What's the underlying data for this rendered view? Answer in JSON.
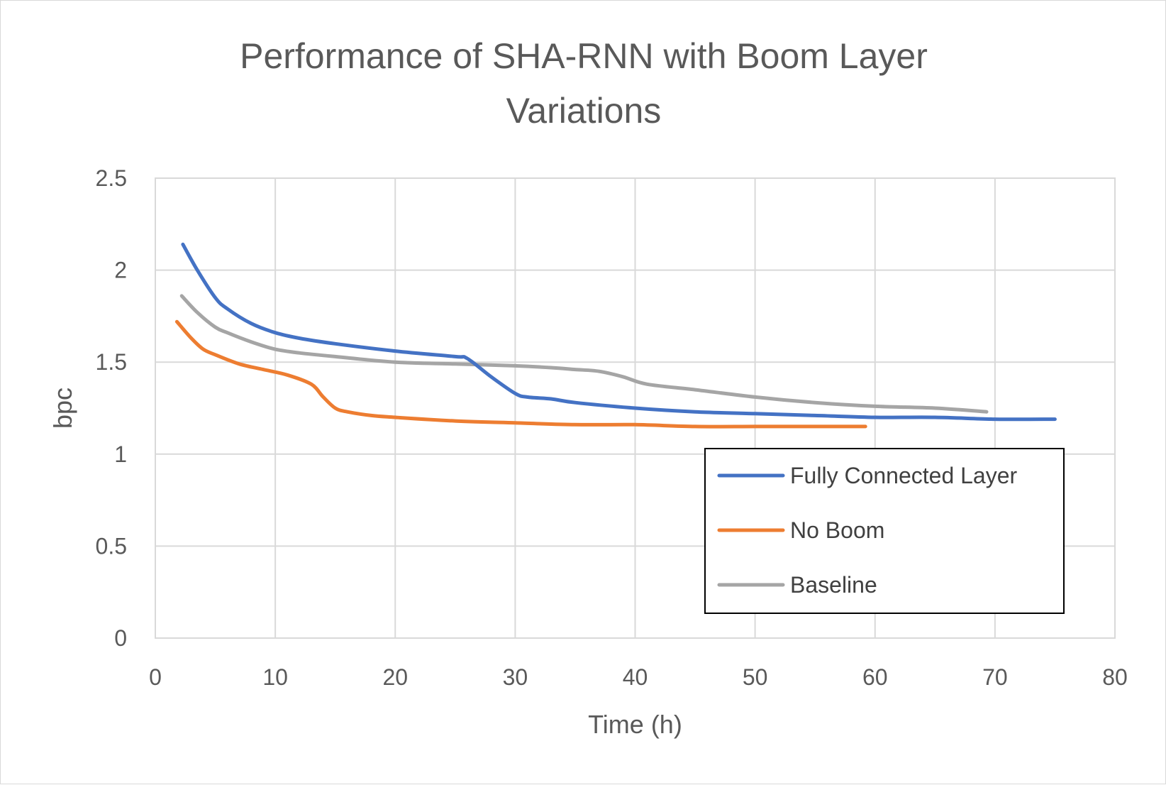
{
  "chart_data": {
    "type": "line",
    "title_lines": [
      "Performance of SHA-RNN with Boom Layer",
      "Variations"
    ],
    "xlabel": "Time (h)",
    "ylabel": "bpc",
    "xlim": [
      0,
      80
    ],
    "ylim": [
      0,
      2.5
    ],
    "x_ticks": [
      0,
      10,
      20,
      30,
      40,
      50,
      60,
      70,
      80
    ],
    "y_ticks": [
      0,
      0.5,
      1,
      1.5,
      2,
      2.5
    ],
    "x_tick_labels": [
      "0",
      "10",
      "20",
      "30",
      "40",
      "50",
      "60",
      "70",
      "80"
    ],
    "y_tick_labels": [
      "0",
      "0.5",
      "1",
      "1.5",
      "2",
      "2.5"
    ],
    "grid": true,
    "legend_position": "bottom-right",
    "series": [
      {
        "name": "Fully Connected Layer",
        "color": "#4472c4",
        "x": [
          2.3,
          3.5,
          5,
          6,
          8,
          10,
          12,
          15,
          20,
          25,
          26,
          28,
          30,
          31,
          33,
          35,
          40,
          45,
          50,
          55,
          60,
          65,
          70,
          75
        ],
        "y": [
          2.14,
          2.0,
          1.85,
          1.79,
          1.71,
          1.66,
          1.63,
          1.6,
          1.56,
          1.53,
          1.52,
          1.42,
          1.33,
          1.31,
          1.3,
          1.28,
          1.25,
          1.23,
          1.22,
          1.21,
          1.2,
          1.2,
          1.19,
          1.19
        ]
      },
      {
        "name": "No Boom",
        "color": "#ed7d31",
        "x": [
          1.8,
          3,
          4,
          5,
          7,
          9,
          11,
          13,
          14,
          15,
          16,
          18,
          20,
          25,
          30,
          35,
          40,
          45,
          50,
          55,
          59.2
        ],
        "y": [
          1.72,
          1.63,
          1.57,
          1.54,
          1.49,
          1.46,
          1.43,
          1.38,
          1.31,
          1.25,
          1.23,
          1.21,
          1.2,
          1.18,
          1.17,
          1.16,
          1.16,
          1.15,
          1.15,
          1.15,
          1.15
        ]
      },
      {
        "name": "Baseline",
        "color": "#a5a5a5",
        "x": [
          2.2,
          3.5,
          5,
          6,
          8,
          10,
          12,
          15,
          20,
          25,
          30,
          33,
          35,
          37,
          39,
          41,
          45,
          50,
          55,
          60,
          65,
          69.3
        ],
        "y": [
          1.86,
          1.77,
          1.69,
          1.66,
          1.61,
          1.57,
          1.55,
          1.53,
          1.5,
          1.49,
          1.48,
          1.47,
          1.46,
          1.45,
          1.42,
          1.38,
          1.35,
          1.31,
          1.28,
          1.26,
          1.25,
          1.23
        ]
      }
    ]
  }
}
